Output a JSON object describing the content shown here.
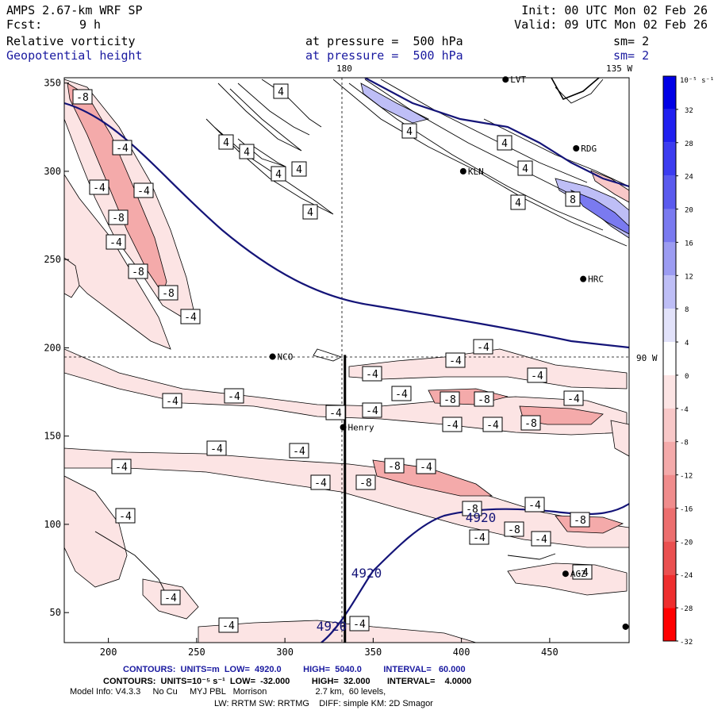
{
  "header": {
    "model": "AMPS 2.67-km WRF SP",
    "init": "Init: 00 UTC Mon 02 Feb 26",
    "fcst_label": "Fcst:",
    "fcst_value": "9 h",
    "valid": "Valid: 09 UTC Mon 02 Feb 26",
    "field1": "Relative vorticity",
    "field1_pressure": "at pressure =  500 hPa",
    "field1_sm": "sm= 2",
    "field2": "Geopotential height",
    "field2_pressure": "at pressure =  500 hPa",
    "field2_sm": "sm= 2"
  },
  "map": {
    "meridian_180": "180",
    "meridian_135w": "135 W",
    "meridian_90w": "90 W",
    "x_ticks": [
      200,
      250,
      300,
      350,
      400,
      450
    ],
    "y_ticks": [
      50,
      100,
      150,
      200,
      250,
      300,
      350
    ],
    "x_range": [
      175,
      495
    ],
    "y_range": [
      33,
      353
    ],
    "section_line": {
      "x": 334,
      "y_start": 33,
      "y_end": 196
    },
    "stations": [
      {
        "name": "LVT",
        "x": 425,
        "y": 352
      },
      {
        "name": "RDG",
        "x": 465,
        "y": 313
      },
      {
        "name": "KLN",
        "x": 401,
        "y": 300
      },
      {
        "name": "HRC",
        "x": 469,
        "y": 239
      },
      {
        "name": "NCO",
        "x": 293,
        "y": 195
      },
      {
        "name": "Henry",
        "x": 333,
        "y": 155
      },
      {
        "name": "AGZ",
        "x": 459,
        "y": 72
      },
      {
        "name": "",
        "x": 493,
        "y": 42
      }
    ],
    "height_contour_label": "4920",
    "height_labels": [
      {
        "text": "4920",
        "x": 606,
        "y": 658
      },
      {
        "text": "4920",
        "x": 462,
        "y": 728
      },
      {
        "text": "4920",
        "x": 418,
        "y": 795
      }
    ],
    "vort_labels": [
      {
        "t": "-8",
        "x": 104,
        "y": 122
      },
      {
        "t": "-4",
        "x": 154,
        "y": 186
      },
      {
        "t": "-4",
        "x": 125,
        "y": 236
      },
      {
        "t": "-4",
        "x": 181,
        "y": 240
      },
      {
        "t": "-8",
        "x": 149,
        "y": 274
      },
      {
        "t": "-4",
        "x": 146,
        "y": 305
      },
      {
        "t": "-8",
        "x": 174,
        "y": 342
      },
      {
        "t": "-8",
        "x": 212,
        "y": 369
      },
      {
        "t": "-4",
        "x": 240,
        "y": 399
      },
      {
        "t": "4",
        "x": 354,
        "y": 115
      },
      {
        "t": "4",
        "x": 285,
        "y": 179
      },
      {
        "t": "4",
        "x": 311,
        "y": 191
      },
      {
        "t": "4",
        "x": 377,
        "y": 213
      },
      {
        "t": "4",
        "x": 351,
        "y": 219
      },
      {
        "t": "4",
        "x": 391,
        "y": 267
      },
      {
        "t": "4",
        "x": 516,
        "y": 165
      },
      {
        "t": "4",
        "x": 636,
        "y": 180
      },
      {
        "t": "4",
        "x": 662,
        "y": 212
      },
      {
        "t": "4",
        "x": 653,
        "y": 255
      },
      {
        "t": "8",
        "x": 722,
        "y": 251
      },
      {
        "t": "-4",
        "x": 609,
        "y": 437
      },
      {
        "t": "-4",
        "x": 574,
        "y": 454
      },
      {
        "t": "-4",
        "x": 677,
        "y": 473
      },
      {
        "t": "-4",
        "x": 469,
        "y": 471
      },
      {
        "t": "-4",
        "x": 506,
        "y": 496
      },
      {
        "t": "-8",
        "x": 567,
        "y": 503
      },
      {
        "t": "-8",
        "x": 610,
        "y": 503
      },
      {
        "t": "-4",
        "x": 723,
        "y": 502
      },
      {
        "t": "-4",
        "x": 295,
        "y": 499
      },
      {
        "t": "-4",
        "x": 217,
        "y": 505
      },
      {
        "t": "-4",
        "x": 423,
        "y": 520
      },
      {
        "t": "-4",
        "x": 469,
        "y": 517
      },
      {
        "t": "-4",
        "x": 570,
        "y": 535
      },
      {
        "t": "-4",
        "x": 621,
        "y": 535
      },
      {
        "t": "-8",
        "x": 669,
        "y": 533
      },
      {
        "t": "-4",
        "x": 273,
        "y": 565
      },
      {
        "t": "-4",
        "x": 377,
        "y": 568
      },
      {
        "t": "-4",
        "x": 153,
        "y": 588
      },
      {
        "t": "-8",
        "x": 497,
        "y": 587
      },
      {
        "t": "-4",
        "x": 537,
        "y": 588
      },
      {
        "t": "-4",
        "x": 404,
        "y": 608
      },
      {
        "t": "-8",
        "x": 461,
        "y": 608
      },
      {
        "t": "-4",
        "x": 674,
        "y": 636
      },
      {
        "t": "-8",
        "x": 595,
        "y": 641
      },
      {
        "t": "-4",
        "x": 158,
        "y": 650
      },
      {
        "t": "-8",
        "x": 648,
        "y": 667
      },
      {
        "t": "-8",
        "x": 731,
        "y": 655
      },
      {
        "t": "-4",
        "x": 604,
        "y": 677
      },
      {
        "t": "-4",
        "x": 682,
        "y": 679
      },
      {
        "t": "-4",
        "x": 734,
        "y": 721
      },
      {
        "t": "-4",
        "x": 215,
        "y": 753
      },
      {
        "t": "-4",
        "x": 288,
        "y": 788
      },
      {
        "t": "-4",
        "x": 453,
        "y": 786
      }
    ]
  },
  "colorbar": {
    "unit": "10⁻⁵ s⁻¹",
    "labels": [
      "32",
      "28",
      "24",
      "20",
      "16",
      "12",
      "8",
      "4",
      "0",
      "-4",
      "-8",
      "-12",
      "-16",
      "-20",
      "-24",
      "-28",
      "-32"
    ],
    "colors": [
      "#0000e6",
      "#2020f0",
      "#3c3cf0",
      "#5a5aee",
      "#7a7af0",
      "#9c9cf2",
      "#bebef6",
      "#e2e2fa",
      "#ffffff",
      "#fce4e4",
      "#f8c8c8",
      "#f4aaaa",
      "#f08c8c",
      "#ec6e6e",
      "#ea5050",
      "#ee2e2e",
      "#ff0000"
    ]
  },
  "footer": {
    "line1": "CONTOURS:  UNITS=m  LOW=  4920.0         HIGH=  5040.0         INTERVAL=   60.000",
    "line2": "CONTOURS:  UNITS=10⁻⁵ s⁻¹  LOW=  -32.000         HIGH=  32.000       INTERVAL=    4.0000",
    "line3": "Model Info: V4.3.3     No Cu     MYJ PBL   Morrison                    2.7 km,  60 levels,",
    "line4": "LW: RRTM SW: RRTMG    DIFF: simple KM: 2D Smagor"
  }
}
